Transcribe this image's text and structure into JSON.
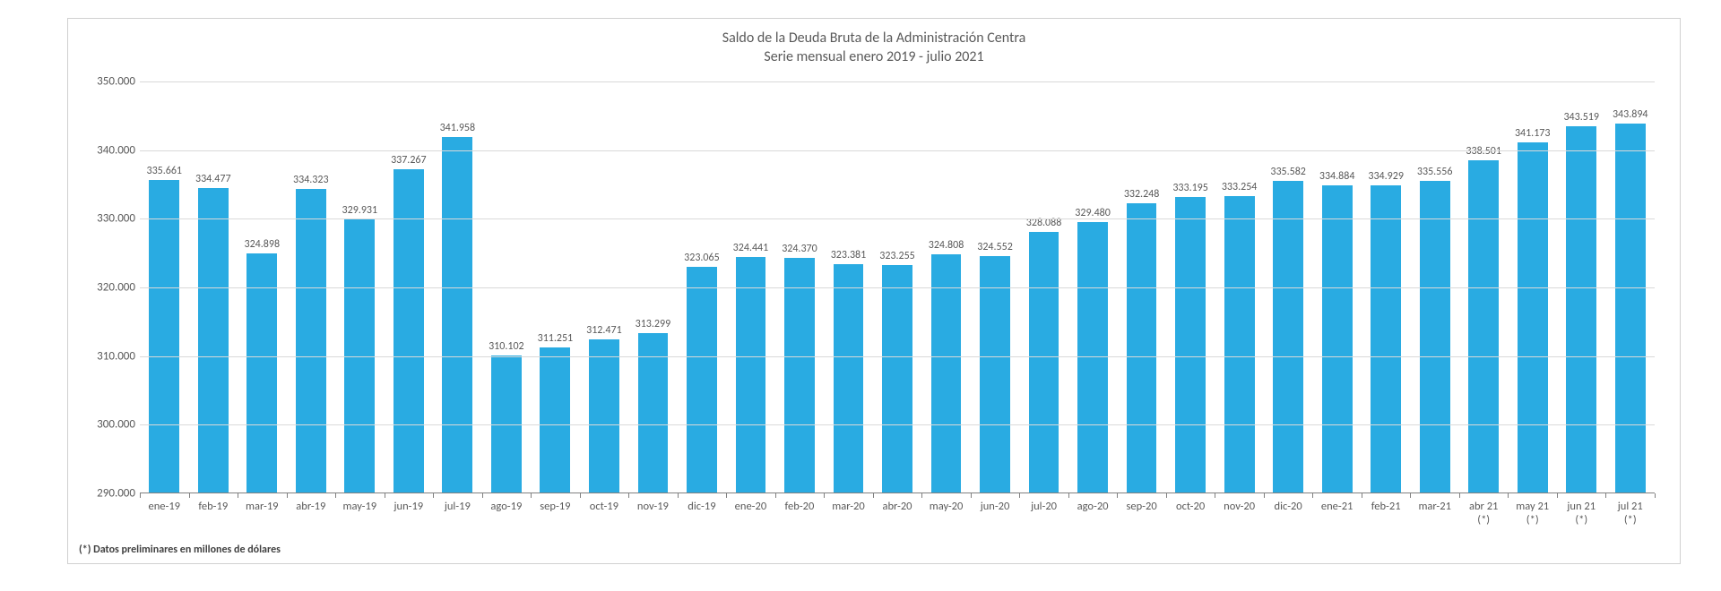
{
  "chart": {
    "type": "bar",
    "title_line1": "Saldo de la Deuda Bruta de la Administración Centra",
    "title_line2": "Serie mensual enero 2019 - julio 2021",
    "title_fontsize": 16,
    "title_color": "#595959",
    "background_color": "#ffffff",
    "border_color": "#d0d0d0",
    "bar_color": "#29abe2",
    "grid_color": "#d9d9d9",
    "axis_line_color": "#808080",
    "label_color": "#595959",
    "label_fontsize": 13,
    "datalabel_fontsize": 12,
    "xlabel_fontsize": 12.5,
    "bar_width_ratio": 0.62,
    "y_axis": {
      "min": 290000,
      "max": 350000,
      "step": 10000,
      "ticks": [
        "290.000",
        "300.000",
        "310.000",
        "320.000",
        "330.000",
        "340.000",
        "350.000"
      ]
    },
    "categories": [
      "ene-19",
      "feb-19",
      "mar-19",
      "abr-19",
      "may-19",
      "jun-19",
      "jul-19",
      "ago-19",
      "sep-19",
      "oct-19",
      "nov-19",
      "dic-19",
      "ene-20",
      "feb-20",
      "mar-20",
      "abr-20",
      "may-20",
      "jun-20",
      "jul-20",
      "ago-20",
      "sep-20",
      "oct-20",
      "nov-20",
      "dic-20",
      "ene-21",
      "feb-21",
      "mar-21",
      "abr 21\n(*)",
      "may 21\n(*)",
      "jun 21\n(*)",
      "jul 21\n(*)"
    ],
    "values": [
      335661,
      334477,
      324898,
      334323,
      329931,
      337267,
      341958,
      310102,
      311251,
      312471,
      313299,
      323065,
      324441,
      324370,
      323381,
      323255,
      324808,
      324552,
      328088,
      329480,
      332248,
      333195,
      333254,
      335582,
      334884,
      334929,
      335556,
      338501,
      341173,
      343519,
      343894
    ],
    "value_labels": [
      "335.661",
      "334.477",
      "324.898",
      "334.323",
      "329.931",
      "337.267",
      "341.958",
      "310.102",
      "311.251",
      "312.471",
      "313.299",
      "323.065",
      "324.441",
      "324.370",
      "323.381",
      "323.255",
      "324.808",
      "324.552",
      "328.088",
      "329.480",
      "332.248",
      "333.195",
      "333.254",
      "335.582",
      "334.884",
      "334.929",
      "335.556",
      "338.501",
      "341.173",
      "343.519",
      "343.894"
    ],
    "footnote": "(*) Datos preliminares en millones de dólares"
  }
}
